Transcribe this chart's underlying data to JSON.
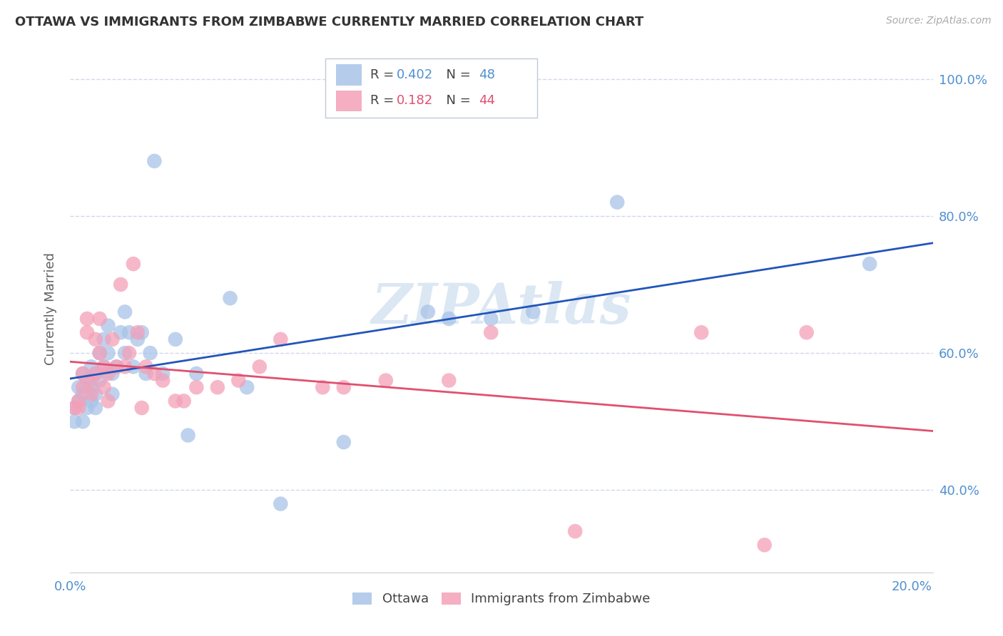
{
  "title": "OTTAWA VS IMMIGRANTS FROM ZIMBABWE CURRENTLY MARRIED CORRELATION CHART",
  "source": "Source: ZipAtlas.com",
  "ylabel": "Currently Married",
  "xlim": [
    0.0,
    0.205
  ],
  "ylim": [
    0.28,
    1.05
  ],
  "yticks": [
    0.4,
    0.6,
    0.8,
    1.0
  ],
  "ytick_labels": [
    "40.0%",
    "60.0%",
    "80.0%",
    "100.0%"
  ],
  "xticks": [
    0.0,
    0.05,
    0.1,
    0.15,
    0.2
  ],
  "xtick_labels": [
    "0.0%",
    "",
    "",
    "",
    "20.0%"
  ],
  "R_ottawa": 0.402,
  "N_ottawa": 48,
  "R_zimbabwe": 0.182,
  "N_zimbabwe": 44,
  "ottawa_color": "#a8c4e8",
  "zimbabwe_color": "#f4a0b8",
  "trend_ottawa_color": "#2255bb",
  "trend_zimbabwe_color": "#e05070",
  "background_color": "#ffffff",
  "grid_color": "#d0d8e8",
  "title_color": "#333333",
  "axis_color": "#5090d0",
  "legend_edge_color": "#c0c8d8",
  "ottawa_x": [
    0.001,
    0.001,
    0.002,
    0.002,
    0.003,
    0.003,
    0.003,
    0.004,
    0.004,
    0.005,
    0.005,
    0.005,
    0.006,
    0.006,
    0.006,
    0.007,
    0.007,
    0.008,
    0.008,
    0.009,
    0.009,
    0.01,
    0.01,
    0.011,
    0.012,
    0.013,
    0.013,
    0.014,
    0.015,
    0.016,
    0.017,
    0.018,
    0.019,
    0.02,
    0.022,
    0.025,
    0.028,
    0.03,
    0.038,
    0.042,
    0.05,
    0.065,
    0.085,
    0.09,
    0.1,
    0.11,
    0.13,
    0.19
  ],
  "ottawa_y": [
    0.52,
    0.5,
    0.55,
    0.53,
    0.57,
    0.54,
    0.5,
    0.56,
    0.52,
    0.58,
    0.55,
    0.53,
    0.57,
    0.54,
    0.52,
    0.6,
    0.56,
    0.62,
    0.58,
    0.64,
    0.6,
    0.57,
    0.54,
    0.58,
    0.63,
    0.66,
    0.6,
    0.63,
    0.58,
    0.62,
    0.63,
    0.57,
    0.6,
    0.88,
    0.57,
    0.62,
    0.48,
    0.57,
    0.68,
    0.55,
    0.38,
    0.47,
    0.66,
    0.65,
    0.65,
    0.66,
    0.82,
    0.73
  ],
  "zimbabwe_x": [
    0.001,
    0.002,
    0.002,
    0.003,
    0.003,
    0.004,
    0.004,
    0.005,
    0.005,
    0.006,
    0.006,
    0.007,
    0.007,
    0.008,
    0.008,
    0.009,
    0.009,
    0.01,
    0.011,
    0.012,
    0.013,
    0.014,
    0.015,
    0.016,
    0.017,
    0.018,
    0.02,
    0.022,
    0.025,
    0.027,
    0.03,
    0.035,
    0.04,
    0.045,
    0.05,
    0.06,
    0.065,
    0.075,
    0.09,
    0.1,
    0.12,
    0.15,
    0.165,
    0.175
  ],
  "zimbabwe_y": [
    0.52,
    0.52,
    0.53,
    0.57,
    0.55,
    0.65,
    0.63,
    0.56,
    0.54,
    0.57,
    0.62,
    0.65,
    0.6,
    0.58,
    0.55,
    0.53,
    0.57,
    0.62,
    0.58,
    0.7,
    0.58,
    0.6,
    0.73,
    0.63,
    0.52,
    0.58,
    0.57,
    0.56,
    0.53,
    0.53,
    0.55,
    0.55,
    0.56,
    0.58,
    0.62,
    0.55,
    0.55,
    0.56,
    0.56,
    0.63,
    0.34,
    0.63,
    0.32,
    0.63
  ]
}
